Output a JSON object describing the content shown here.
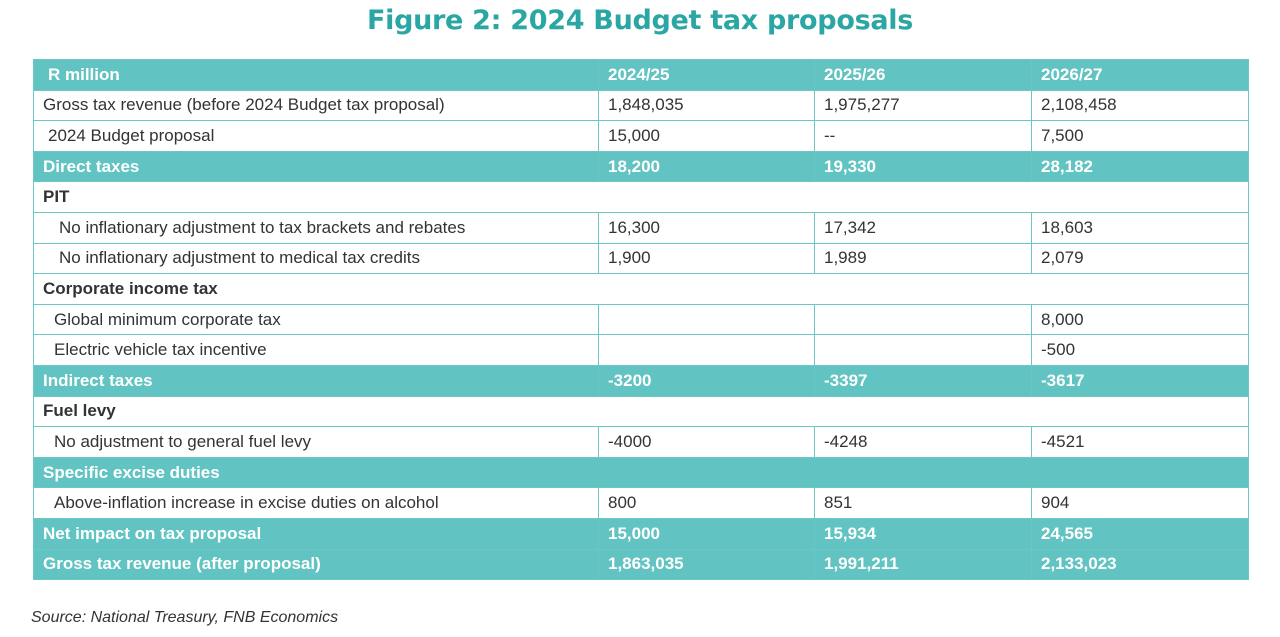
{
  "title": "Figure 2: 2024 Budget tax proposals",
  "table": {
    "header": [
      "R million",
      "2024/25",
      "2025/26",
      "2026/27"
    ],
    "rows": [
      {
        "type": "plain",
        "indent": 0,
        "cells": [
          "Gross tax revenue (before 2024 Budget tax proposal)",
          "1,848,035",
          "1,975,277",
          "2,108,458"
        ]
      },
      {
        "type": "plain",
        "indent": 1,
        "cells": [
          "2024 Budget proposal",
          "15,000",
          "--",
          "7,500"
        ]
      },
      {
        "type": "highlight",
        "cells": [
          "Direct taxes",
          "18,200",
          "19,330",
          "28,182"
        ]
      },
      {
        "type": "section",
        "label": "PIT"
      },
      {
        "type": "plain",
        "indent": 3,
        "cells": [
          "No inflationary adjustment to tax brackets and rebates",
          "16,300",
          "17,342",
          "18,603"
        ]
      },
      {
        "type": "plain",
        "indent": 3,
        "cells": [
          "No inflationary adjustment to medical tax credits",
          "1,900",
          "1,989",
          "2,079"
        ]
      },
      {
        "type": "section",
        "label": "Corporate income tax"
      },
      {
        "type": "plain",
        "indent": 2,
        "cells": [
          "Global minimum corporate tax",
          "",
          "",
          "8,000"
        ]
      },
      {
        "type": "plain",
        "indent": 2,
        "cells": [
          "Electric vehicle tax incentive",
          "",
          "",
          "-500"
        ]
      },
      {
        "type": "highlight",
        "cells": [
          "Indirect taxes",
          "-3200",
          "-3397",
          "-3617"
        ]
      },
      {
        "type": "section",
        "label": "Fuel levy"
      },
      {
        "type": "plain",
        "indent": 2,
        "cells": [
          "No adjustment to general fuel levy",
          "-4000",
          "-4248",
          "-4521"
        ]
      },
      {
        "type": "highlight-span",
        "label": "Specific excise duties"
      },
      {
        "type": "plain",
        "indent": 2,
        "cells": [
          "Above-inflation increase in excise duties on alcohol",
          "800",
          "851",
          "904"
        ]
      },
      {
        "type": "highlight",
        "cells": [
          "Net impact on tax proposal",
          "15,000",
          "15,934",
          "24,565"
        ]
      },
      {
        "type": "highlight",
        "cells": [
          "Gross tax revenue (after proposal)",
          "1,863,035",
          "1,991,211",
          "2,133,023"
        ]
      }
    ]
  },
  "source": "Source: National Treasury, FNB Economics"
}
